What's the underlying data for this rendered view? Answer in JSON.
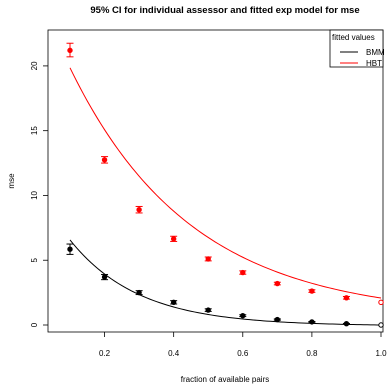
{
  "chart_data": {
    "type": "scatter",
    "title": "95% CI for individual assessor and fitted exp model for mse",
    "xlabel": "fraction of available pairs",
    "ylabel": "mse",
    "xlim": [
      0.1,
      1.0
    ],
    "ylim": [
      0,
      22
    ],
    "xticks": [
      "0.2",
      "0.4",
      "0.6",
      "0.8",
      "1.0"
    ],
    "yticks": [
      "0",
      "5",
      "10",
      "15",
      "20"
    ],
    "legend": {
      "title": "fitted values",
      "position": "top-right",
      "entries": [
        "BMM",
        "HBT"
      ]
    },
    "series": [
      {
        "name": "BMM",
        "color": "#000000",
        "points": [
          {
            "x": 0.1,
            "y": 5.85,
            "lo": 5.45,
            "hi": 6.25
          },
          {
            "x": 0.2,
            "y": 3.7,
            "lo": 3.5,
            "hi": 3.9
          },
          {
            "x": 0.3,
            "y": 2.5,
            "lo": 2.35,
            "hi": 2.65
          },
          {
            "x": 0.4,
            "y": 1.75,
            "lo": 1.62,
            "hi": 1.88
          },
          {
            "x": 0.5,
            "y": 1.15,
            "lo": 1.05,
            "hi": 1.25
          },
          {
            "x": 0.6,
            "y": 0.72,
            "lo": 0.65,
            "hi": 0.79
          },
          {
            "x": 0.7,
            "y": 0.42,
            "lo": 0.37,
            "hi": 0.47
          },
          {
            "x": 0.8,
            "y": 0.24,
            "lo": 0.21,
            "hi": 0.27
          },
          {
            "x": 0.9,
            "y": 0.1,
            "lo": 0.08,
            "hi": 0.12
          },
          {
            "x": 1.0,
            "y": 0.0,
            "open": true
          }
        ],
        "fit": {
          "model": "exp",
          "a": 11.0,
          "b": 5.05,
          "c": -0.07
        }
      },
      {
        "name": "HBT",
        "color": "#ff0000",
        "points": [
          {
            "x": 0.1,
            "y": 21.2,
            "lo": 20.7,
            "hi": 21.75
          },
          {
            "x": 0.2,
            "y": 12.75,
            "lo": 12.5,
            "hi": 13.0
          },
          {
            "x": 0.3,
            "y": 8.9,
            "lo": 8.65,
            "hi": 9.15
          },
          {
            "x": 0.4,
            "y": 6.65,
            "lo": 6.45,
            "hi": 6.85
          },
          {
            "x": 0.5,
            "y": 5.1,
            "lo": 4.95,
            "hi": 5.25
          },
          {
            "x": 0.6,
            "y": 4.05,
            "lo": 3.92,
            "hi": 4.18
          },
          {
            "x": 0.7,
            "y": 3.2,
            "lo": 3.1,
            "hi": 3.3
          },
          {
            "x": 0.8,
            "y": 2.62,
            "lo": 2.52,
            "hi": 2.72
          },
          {
            "x": 0.9,
            "y": 2.1,
            "lo": 2.0,
            "hi": 2.2
          },
          {
            "x": 1.0,
            "y": 1.75,
            "open": true
          }
        ],
        "fit": {
          "model": "exp",
          "a": 25.6,
          "b": 2.85,
          "c": 0.6
        }
      }
    ]
  }
}
